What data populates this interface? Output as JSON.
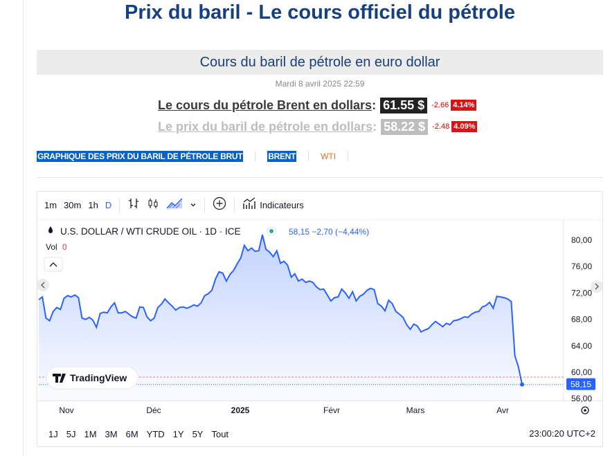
{
  "page_title": "Prix du baril - Le cours officiel du pétrole",
  "header": "Cours du baril de pétrole en euro dollar",
  "date": "Mardi 8 avril 2025 22:59",
  "brent": {
    "label": "Le cours du pétrole Brent en dollars",
    "price": "61.55 $",
    "change": "-2.66",
    "pct": "4.14%"
  },
  "wti": {
    "label": "Le prix du baril de pétrole en dollars",
    "price": "58.22 $",
    "change": "-2.48",
    "pct": "4.09%"
  },
  "tabs": {
    "graph": "GRAPHIQUE DES PRIX DU BARIL DE PÉTROLE BRUT",
    "brent": "BRENT",
    "wti": "WTI"
  },
  "toolbar": {
    "r1m": "1m",
    "r30m": "30m",
    "r1h": "1h",
    "rD": "D",
    "indicators": "Indicateurs"
  },
  "symbol": {
    "name": "U.S. DOLLAR / WTI CRUDE OIL · 1D · ICE",
    "quote": "58,15 −2,70 (−4,44%)",
    "vol_label": "Vol",
    "vol_value": "0"
  },
  "watermark": "TradingView",
  "ranges": [
    "1J",
    "5J",
    "1M",
    "3M",
    "6M",
    "YTD",
    "1Y",
    "5Y",
    "Tout"
  ],
  "clock": "23:00:20 UTC+2",
  "colors": {
    "line": "#2962ff",
    "brent_box": "#222222",
    "wti_box": "#bdbdbd",
    "title": "#173f7a",
    "neg": "#d61414"
  },
  "icons": [
    "bar-style-icon",
    "candles-icon",
    "area-icon",
    "chevron-down-icon",
    "plus-circle-icon",
    "indicators-icon",
    "drop-icon",
    "collapse-icon",
    "scroll-left-icon",
    "scroll-right-icon",
    "settings-icon"
  ],
  "chart_data": {
    "type": "area",
    "x_labels": [
      "Nov",
      "Déc",
      "2025",
      "Févr",
      "Mars",
      "Avr"
    ],
    "y_ticks": [
      "80,00",
      "76,00",
      "72,00",
      "68,00",
      "64,00",
      "60,00",
      "56,00"
    ],
    "ylim": [
      56,
      82
    ],
    "last_value_label": "58,15",
    "values": [
      71,
      71.4,
      68.2,
      67.8,
      69.2,
      69.8,
      69.5,
      71.2,
      71.6,
      71.4,
      71.7,
      71.3,
      68.2,
      68,
      68.3,
      67.9,
      66.8,
      68.9,
      69.1,
      69,
      69.9,
      70.5,
      69,
      69,
      69.2,
      68.8,
      68.4,
      68.2,
      69.9,
      69.8,
      68.4,
      67.8,
      68.2,
      69.8,
      70.3,
      71.1,
      70.5,
      70,
      69.4,
      69.8,
      69.9,
      69.7,
      69.9,
      70.2,
      70,
      70.5,
      71.6,
      71.9,
      72.4,
      74.1,
      75.2,
      75,
      73.8,
      74.8,
      75.4,
      76.4,
      77.3,
      79.2,
      78.4,
      78.8,
      78.3,
      78.4,
      80.8,
      78.6,
      78.2,
      77.5,
      78.4,
      76.5,
      76.8,
      76.2,
      74.4,
      74.9,
      73.8,
      74.1,
      73.6,
      73.8,
      73.6,
      72.9,
      72.5,
      72.6,
      71.7,
      70.8,
      71.3,
      71.4,
      72.6,
      72,
      71.2,
      72.2,
      70.8,
      71.5,
      71.8,
      72.4,
      72.7,
      72.5,
      70.4,
      70,
      69.3,
      70.9,
      70.4,
      69.2,
      68.8,
      68.3,
      67.2,
      66.5,
      67.3,
      67,
      66.1,
      66.4,
      66.6,
      67.2,
      67.7,
      67.3,
      66.9,
      67.4,
      67.2,
      67.8,
      67.9,
      68.1,
      68.4,
      68.3,
      68.8,
      69.1,
      69.2,
      69.9,
      70.1,
      70.6,
      69.7,
      71.5,
      71.4,
      71.3,
      71.1,
      70.7,
      62.5,
      60.8,
      58.15
    ]
  }
}
